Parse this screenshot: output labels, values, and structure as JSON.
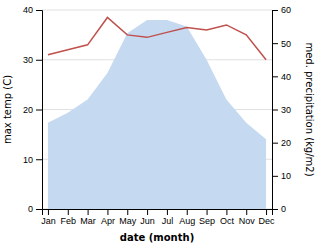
{
  "chart_data": {
    "type": "line",
    "categories": [
      "Jan",
      "Feb",
      "Mar",
      "Apr",
      "May",
      "Jun",
      "Jul",
      "Aug",
      "Sep",
      "Oct",
      "Nov",
      "Dec"
    ],
    "xlabel": "date (month)",
    "ylabel": "max temp (C)",
    "y2label": "med. precipitation (kg/m2)",
    "series": [
      {
        "type": "area",
        "axis": "y2",
        "color": "#c5d9f1",
        "values": [
          26,
          29,
          33,
          41,
          53,
          57,
          57,
          55,
          45,
          33,
          26,
          21
        ]
      },
      {
        "type": "line",
        "color": "#c0504d",
        "values": [
          31,
          32,
          33,
          38.5,
          35,
          34.5,
          35.5,
          36.5,
          36,
          37,
          35,
          30
        ]
      }
    ],
    "ylim": [
      0,
      40
    ],
    "yticks": [
      0,
      10,
      20,
      30,
      40
    ],
    "y2lim": [
      0,
      60
    ],
    "y2ticks": [
      0,
      10,
      20,
      30,
      40,
      50,
      60
    ],
    "grid": true
  }
}
